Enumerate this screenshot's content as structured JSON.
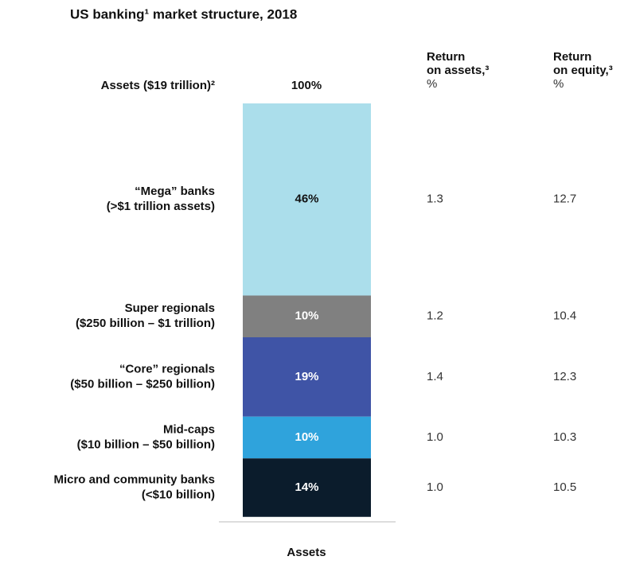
{
  "chart_data": {
    "type": "stacked-bar",
    "title": "US banking¹ market structure, 2018",
    "total_label": "Assets ($19 trillion)²",
    "total_value_label": "100%",
    "x_label": "Assets",
    "ylim": [
      0,
      100
    ],
    "series": [
      {
        "name": [
          "“Mega” banks",
          "(>$1 trillion assets)"
        ],
        "color": "#abdeeb",
        "values": [
          46
        ],
        "value_labels": [
          "46%"
        ]
      },
      {
        "name": [
          "Super regionals",
          "($250 billion – $1 trillion)"
        ],
        "color": "#808080",
        "values": [
          10
        ],
        "value_labels": [
          "10%"
        ]
      },
      {
        "name": [
          "“Core” regionals",
          "($50 billion – $250 billion)"
        ],
        "color": "#3f54a6",
        "values": [
          19
        ],
        "value_labels": [
          "19%"
        ]
      },
      {
        "name": [
          "Mid-caps",
          "($10 billion – $50 billion)"
        ],
        "color": "#2fa3dc",
        "values": [
          10
        ],
        "value_labels": [
          "10%"
        ]
      },
      {
        "name": [
          "Micro and community banks",
          "(<$10 billion)"
        ],
        "color": "#0b1c2c",
        "values": [
          14
        ],
        "value_labels": [
          "14%"
        ]
      }
    ],
    "columns": [
      {
        "header": [
          "Return",
          "on assets,³",
          "%"
        ],
        "values": [
          "1.3",
          "1.2",
          "1.4",
          "1.0",
          "1.0"
        ]
      },
      {
        "header": [
          "Return",
          "on equity,³",
          "%"
        ],
        "values": [
          "12.7",
          "10.4",
          "12.3",
          "10.3",
          "10.5"
        ]
      }
    ]
  }
}
